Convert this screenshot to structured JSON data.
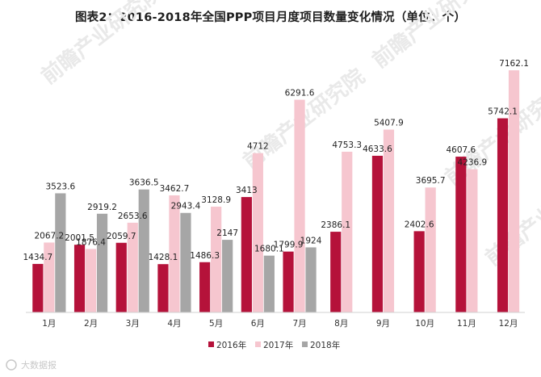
{
  "chart_data": {
    "type": "bar",
    "title": "图表2：2016-2018年全国PPP项目月度项目数量变化情况（单位：个）",
    "categories": [
      "1月",
      "2月",
      "3月",
      "4月",
      "5月",
      "6月",
      "7月",
      "8月",
      "9月",
      "10月",
      "11月",
      "12月"
    ],
    "series": [
      {
        "name": "2016年",
        "color": "#b5123a",
        "values": [
          1434.7,
          2001.5,
          2059.7,
          1428.1,
          1486.3,
          3413,
          1799.9,
          2386.1,
          4633.6,
          2402.6,
          4607.6,
          5742.1
        ]
      },
      {
        "name": "2017年",
        "color": "#f6c6cf",
        "values": [
          2067.2,
          1876.4,
          2653.6,
          3462.7,
          3128.9,
          4712,
          6291.6,
          4753.3,
          5407.9,
          3695.7,
          4236.9,
          7162.1
        ]
      },
      {
        "name": "2018年",
        "color": "#a6a6a6",
        "values": [
          3523.6,
          2919.2,
          3636.5,
          2943.4,
          2147,
          1680.1,
          1924,
          null,
          null,
          null,
          null,
          null
        ]
      }
    ],
    "ylim": [
      0,
      8000
    ],
    "legend_position": "bottom-center",
    "grid": false
  },
  "watermark": {
    "text": "前瞻产业研究院"
  },
  "credit": {
    "text": "大数据报"
  }
}
